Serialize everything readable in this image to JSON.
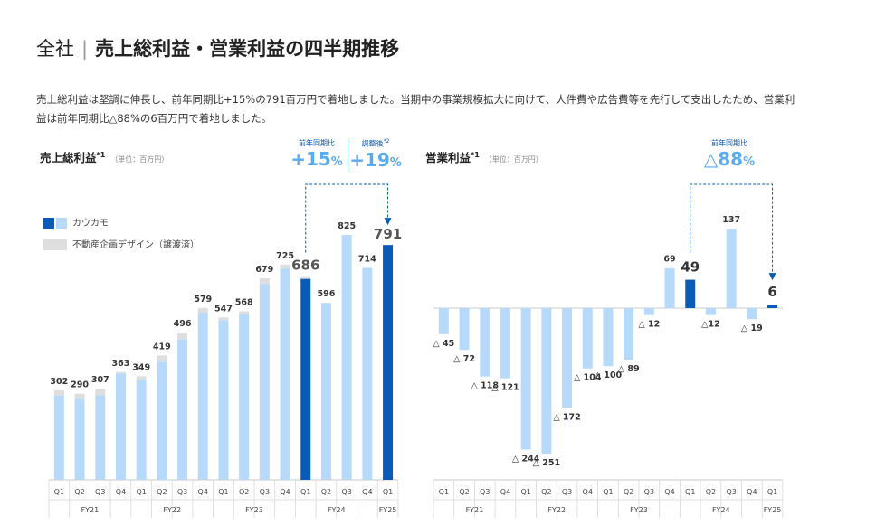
{
  "header": {
    "scope": "全社",
    "separator": "|",
    "title": "売上総利益・営業利益の四半期推移",
    "description": "売上総利益は堅調に伸長し、前年同期比+15%の791百万円で着地しました。当期中の事業規模拡大に向けて、人件費や広告費等を先行して支出したため、営業利益は前年同期比△88%の6百万円で着地しました。"
  },
  "colors": {
    "highlight": "#0a5bb5",
    "kawkamo": "#b7dafa",
    "realestate": "#dedede",
    "accent_text": "#5aacf0"
  },
  "left_chart": {
    "title": "売上総利益",
    "note": "*1",
    "unit": "（単位：百万円）",
    "yoy_label": "前年同期比",
    "yoy_value": "+15",
    "adj_label": "調整後",
    "adj_note": "*2",
    "adj_value": "+19",
    "pct": "%",
    "legend": [
      {
        "name": "カウカモ",
        "icon": "kawkamo-legend-swatch"
      },
      {
        "name": "不動産企画デザイン（譲渡済）",
        "icon": "realestate-legend-swatch"
      }
    ]
  },
  "right_chart": {
    "title": "営業利益",
    "note": "*1",
    "unit": "（単位：百万円）",
    "yoy_label": "前年同期比",
    "yoy_value": "△88",
    "pct": "%"
  },
  "chart_data": [
    {
      "type": "bar",
      "title": "売上総利益",
      "stacked": true,
      "categories": [
        "Q1",
        "Q2",
        "Q3",
        "Q4",
        "Q1",
        "Q2",
        "Q3",
        "Q4",
        "Q1",
        "Q2",
        "Q3",
        "Q4",
        "Q1",
        "Q2",
        "Q3",
        "Q4",
        "Q1"
      ],
      "fiscal_years": [
        {
          "label": "FY21",
          "count": 4
        },
        {
          "label": "FY22",
          "count": 4
        },
        {
          "label": "FY23",
          "count": 4
        },
        {
          "label": "FY24",
          "count": 4
        },
        {
          "label": "FY25",
          "count": 1
        }
      ],
      "totals": [
        302,
        290,
        307,
        363,
        349,
        419,
        496,
        579,
        547,
        568,
        679,
        725,
        686,
        596,
        825,
        714,
        791
      ],
      "series": [
        {
          "name": "カウカモ",
          "values": [
            284,
            272,
            285,
            358,
            337,
            398,
            474,
            563,
            538,
            558,
            660,
            712,
            677,
            596,
            825,
            714,
            791
          ]
        },
        {
          "name": "不動産企画デザイン（譲渡済）",
          "values": [
            18,
            18,
            22,
            5,
            12,
            21,
            22,
            16,
            9,
            10,
            19,
            13,
            9,
            0,
            0,
            0,
            0
          ]
        }
      ],
      "highlighted_bars": [
        12,
        16
      ],
      "ylim": [
        0,
        880
      ]
    },
    {
      "type": "bar",
      "title": "営業利益",
      "categories": [
        "Q1",
        "Q2",
        "Q3",
        "Q4",
        "Q1",
        "Q2",
        "Q3",
        "Q4",
        "Q1",
        "Q2",
        "Q3",
        "Q4",
        "Q1",
        "Q2",
        "Q3",
        "Q4",
        "Q1"
      ],
      "fiscal_years": [
        {
          "label": "FY21",
          "count": 4
        },
        {
          "label": "FY22",
          "count": 4
        },
        {
          "label": "FY23",
          "count": 4
        },
        {
          "label": "FY24",
          "count": 4
        },
        {
          "label": "FY25",
          "count": 1
        }
      ],
      "values": [
        -45,
        -72,
        -118,
        -121,
        -244,
        -251,
        -172,
        -104,
        -100,
        -89,
        -12,
        69,
        49,
        -12,
        137,
        -19,
        6
      ],
      "labels": [
        "△ 45",
        "△ 72",
        "△ 118",
        "△ 121",
        "△ 244",
        "△ 251",
        "△ 172",
        "△ 104",
        "△ 100",
        "△ 89",
        "△ 12",
        "69",
        "49",
        "△12",
        "137",
        "△ 19",
        "6"
      ],
      "highlighted_bars": [
        12,
        16
      ],
      "ylim": [
        -260,
        160
      ]
    }
  ]
}
